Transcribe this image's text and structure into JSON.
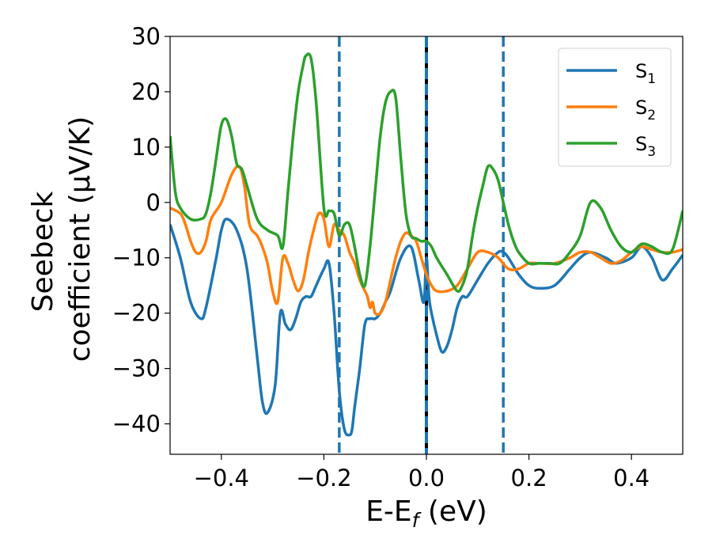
{
  "chart_data": {
    "type": "line",
    "title": "",
    "xlabel": {
      "text": "E-E",
      "subscript": "f",
      "suffix": " (eV)"
    },
    "ylabel": {
      "line1": "Seebeck",
      "line2": "coefficient  (μV/K)"
    },
    "xlim": [
      -0.5,
      0.5
    ],
    "ylim": [
      -45.5,
      30
    ],
    "xticks": [
      -0.4,
      -0.2,
      0.0,
      0.2,
      0.4
    ],
    "xtick_labels": [
      "−0.4",
      "−0.2",
      "0.0",
      "0.2",
      "0.4"
    ],
    "yticks": [
      30,
      20,
      10,
      0,
      -10,
      -20,
      -30,
      -40
    ],
    "ytick_labels": [
      "30",
      "20",
      "10",
      "0",
      "−10",
      "−20",
      "−30",
      "−40"
    ],
    "grid": false,
    "legend": "top-right",
    "vlines": [
      {
        "x": -0.17,
        "style": "dashed",
        "color": "#1f77b4"
      },
      {
        "x": 0.15,
        "style": "dashed",
        "color": "#1f77b4"
      },
      {
        "x": 0.0,
        "style": "solid-black-dashed-blue",
        "color": "#1f77b4"
      }
    ],
    "series": [
      {
        "name": "S",
        "subscript": "1",
        "color": "#1f77b4",
        "x": [
          -0.5,
          -0.48,
          -0.46,
          -0.44,
          -0.43,
          -0.41,
          -0.4,
          -0.39,
          -0.37,
          -0.35,
          -0.33,
          -0.32,
          -0.31,
          -0.295,
          -0.285,
          -0.275,
          -0.265,
          -0.255,
          -0.245,
          -0.235,
          -0.225,
          -0.215,
          -0.2,
          -0.19,
          -0.18,
          -0.17,
          -0.16,
          -0.15,
          -0.145,
          -0.14,
          -0.13,
          -0.12,
          -0.11,
          -0.1,
          -0.09,
          -0.08,
          -0.07,
          -0.05,
          -0.03,
          -0.015,
          -0.005,
          0.0,
          0.005,
          0.01,
          0.02,
          0.03,
          0.04,
          0.05,
          0.06,
          0.07,
          0.08,
          0.1,
          0.12,
          0.14,
          0.15,
          0.16,
          0.18,
          0.2,
          0.22,
          0.25,
          0.28,
          0.3,
          0.32,
          0.35,
          0.37,
          0.4,
          0.42,
          0.44,
          0.46,
          0.48,
          0.5
        ],
        "y": [
          -4,
          -10,
          -18,
          -21,
          -19,
          -10,
          -5,
          -3,
          -5,
          -12,
          -28,
          -36,
          -38,
          -33,
          -20,
          -22,
          -23,
          -21,
          -18,
          -17,
          -17,
          -15,
          -12,
          -11,
          -20,
          -34,
          -41,
          -42,
          -41,
          -37,
          -30,
          -22,
          -21,
          -21,
          -20,
          -18,
          -16,
          -10,
          -8,
          -14,
          -18,
          -10,
          -17,
          -20,
          -24,
          -27,
          -26,
          -23,
          -19,
          -17,
          -17,
          -14,
          -11,
          -9,
          -9,
          -10,
          -13,
          -15,
          -15.5,
          -15,
          -12,
          -10,
          -9,
          -10,
          -11,
          -10,
          -8,
          -10,
          -14,
          -12,
          -9.5
        ]
      },
      {
        "name": "S",
        "subscript": "2",
        "color": "#ff7f0e",
        "x": [
          -0.5,
          -0.48,
          -0.47,
          -0.46,
          -0.45,
          -0.44,
          -0.43,
          -0.42,
          -0.4,
          -0.38,
          -0.365,
          -0.355,
          -0.345,
          -0.33,
          -0.32,
          -0.31,
          -0.3,
          -0.29,
          -0.28,
          -0.27,
          -0.26,
          -0.25,
          -0.24,
          -0.23,
          -0.22,
          -0.21,
          -0.2,
          -0.19,
          -0.18,
          -0.17,
          -0.16,
          -0.15,
          -0.14,
          -0.13,
          -0.12,
          -0.115,
          -0.11,
          -0.105,
          -0.1,
          -0.09,
          -0.08,
          -0.07,
          -0.06,
          -0.05,
          -0.04,
          -0.03,
          -0.02,
          -0.01,
          0.0,
          0.01,
          0.02,
          0.04,
          0.06,
          0.08,
          0.1,
          0.12,
          0.14,
          0.16,
          0.18,
          0.2,
          0.22,
          0.25,
          0.28,
          0.3,
          0.32,
          0.34,
          0.36,
          0.38,
          0.4,
          0.42,
          0.44,
          0.46,
          0.48,
          0.5
        ],
        "y": [
          -1,
          -2,
          -4,
          -7,
          -9,
          -9,
          -7,
          -3,
          0,
          5,
          6.5,
          3,
          -4,
          -6,
          -8,
          -11,
          -16,
          -18,
          -10,
          -11,
          -14,
          -16,
          -14,
          -9,
          -5,
          -2,
          -3,
          -8,
          -4,
          -5,
          -6,
          -9,
          -11,
          -14,
          -16,
          -17,
          -19,
          -18,
          -20,
          -20,
          -18,
          -14,
          -10,
          -7,
          -5.5,
          -6,
          -7,
          -10,
          -13,
          -15,
          -16,
          -16,
          -15,
          -12,
          -9,
          -9,
          -10,
          -12,
          -12,
          -11,
          -11,
          -11,
          -10,
          -9,
          -9,
          -10,
          -11,
          -10.5,
          -9,
          -8,
          -8.5,
          -9,
          -9,
          -8.5
        ]
      },
      {
        "name": "S",
        "subscript": "3",
        "color": "#2ca02c",
        "x": [
          -0.5,
          -0.49,
          -0.48,
          -0.46,
          -0.44,
          -0.43,
          -0.42,
          -0.41,
          -0.4,
          -0.39,
          -0.38,
          -0.37,
          -0.36,
          -0.35,
          -0.33,
          -0.31,
          -0.29,
          -0.28,
          -0.27,
          -0.26,
          -0.25,
          -0.24,
          -0.235,
          -0.225,
          -0.215,
          -0.2,
          -0.19,
          -0.18,
          -0.17,
          -0.16,
          -0.15,
          -0.14,
          -0.13,
          -0.12,
          -0.11,
          -0.1,
          -0.09,
          -0.08,
          -0.07,
          -0.06,
          -0.05,
          -0.04,
          -0.03,
          -0.02,
          -0.01,
          0.0,
          0.01,
          0.02,
          0.04,
          0.06,
          0.07,
          0.08,
          0.09,
          0.1,
          0.11,
          0.12,
          0.13,
          0.14,
          0.15,
          0.16,
          0.17,
          0.18,
          0.2,
          0.22,
          0.24,
          0.26,
          0.28,
          0.3,
          0.32,
          0.34,
          0.36,
          0.38,
          0.4,
          0.42,
          0.44,
          0.46,
          0.48,
          0.5
        ],
        "y": [
          12,
          2,
          -1,
          -3,
          -3,
          -2,
          2,
          8,
          14,
          15,
          12,
          7,
          6,
          3,
          -3,
          -5,
          -6,
          -8,
          2,
          12,
          20,
          25,
          26.5,
          26,
          18,
          -1,
          -1.5,
          -2,
          -6,
          -4,
          -4,
          -8,
          -13,
          -15,
          -8,
          2,
          12,
          18,
          20,
          19,
          8,
          -2,
          -6,
          -6.5,
          -7,
          -7,
          -8,
          -10,
          -13,
          -16,
          -15,
          -12,
          -6,
          -1,
          3,
          6.5,
          6,
          4,
          0,
          -4,
          -7,
          -9,
          -11,
          -11,
          -11,
          -11,
          -9,
          -6,
          0,
          -1,
          -5,
          -8,
          -9,
          -7.5,
          -8,
          -9,
          -8.5,
          -1.5
        ]
      }
    ]
  }
}
